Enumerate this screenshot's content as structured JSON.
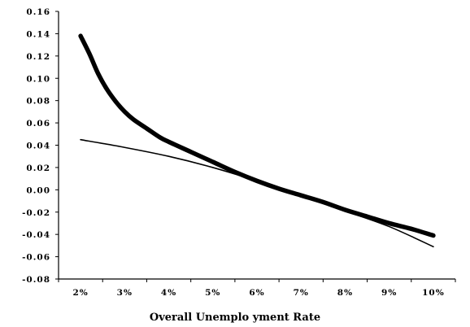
{
  "chart_data": {
    "type": "line",
    "title": "",
    "xlabel": "Overall Unemplo yment Rate",
    "ylabel": "",
    "x_tick_labels": [
      "2%",
      "3%",
      "4%",
      "5%",
      "6%",
      "7%",
      "8%",
      "9%",
      "10%"
    ],
    "y_tick_labels": [
      "0.16",
      "0.14",
      "0.12",
      "0.10",
      "0.08",
      "0.06",
      "0.04",
      "0.02",
      "0.00",
      "-0.02",
      "-0.04",
      "-0.06",
      "-0.08"
    ],
    "xlim": [
      1.5,
      10.5
    ],
    "ylim": [
      -0.08,
      0.16
    ],
    "y_ticks": [
      0.16,
      0.14,
      0.12,
      0.1,
      0.08,
      0.06,
      0.04,
      0.02,
      0.0,
      -0.02,
      -0.04,
      -0.06,
      -0.08
    ],
    "x_ticks": [
      2,
      3,
      4,
      5,
      6,
      7,
      8,
      9,
      10
    ],
    "grid": false,
    "legend": "none",
    "series": [
      {
        "style": "thick",
        "color": "#000000",
        "x": [
          2.0,
          2.2,
          2.4,
          2.6,
          2.8,
          3.0,
          3.2,
          3.5,
          3.8,
          4.0,
          4.5,
          5.0,
          5.5,
          6.0,
          6.5,
          7.0,
          7.5,
          8.0,
          8.5,
          9.0,
          9.5,
          10.0
        ],
        "y": [
          0.138,
          0.122,
          0.104,
          0.09,
          0.079,
          0.07,
          0.063,
          0.055,
          0.047,
          0.043,
          0.034,
          0.025,
          0.016,
          0.008,
          0.001,
          -0.005,
          -0.011,
          -0.018,
          -0.024,
          -0.03,
          -0.035,
          -0.041
        ]
      },
      {
        "style": "thin",
        "color": "#000000",
        "x": [
          2.0,
          3.0,
          4.0,
          5.0,
          6.0,
          7.0,
          8.0,
          9.0,
          10.0
        ],
        "y": [
          0.045,
          0.038,
          0.03,
          0.02,
          0.008,
          -0.005,
          -0.019,
          -0.033,
          -0.051
        ]
      }
    ]
  }
}
